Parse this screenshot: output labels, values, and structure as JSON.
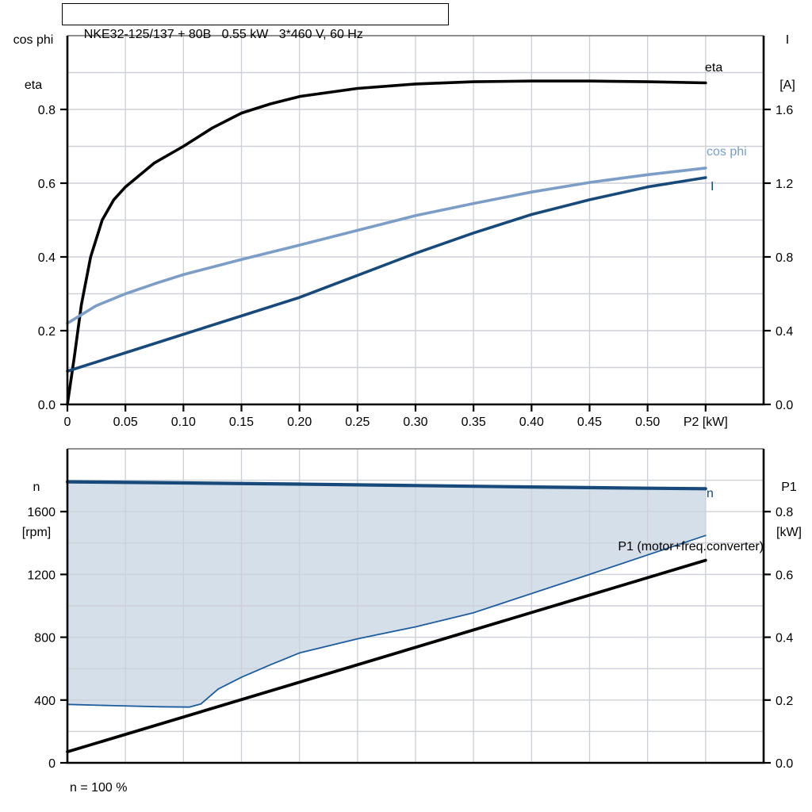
{
  "title_box": {
    "text": "NKE32-125/137 + 80B   0.55 kW   3*460 V, 60 Hz"
  },
  "colors": {
    "black": "#000000",
    "light_blue": "#7b9dc6",
    "dark_blue": "#17497b",
    "boundary_blue": "#1d5c9e",
    "area_fill": "#d4dfea",
    "grid": "#cdd1d7",
    "axis": "#000000",
    "top_border": "#6a6a6a"
  },
  "top_chart": {
    "left_axis_title_lines": [
      "cos phi",
      "eta"
    ],
    "right_axis_title_lines": [
      "I",
      "[A]"
    ],
    "x_axis_label": "P2 [kW]",
    "curve_labels": {
      "eta": "eta",
      "cos_phi": "cos phi",
      "current": "I"
    }
  },
  "bottom_chart": {
    "left_axis_title_lines": [
      "n",
      "[rpm]"
    ],
    "right_axis_title_lines": [
      "P1",
      "[kW]"
    ],
    "annotation": "P1 (motor+freq.converter)",
    "footnote": "n = 100 %",
    "curve_labels": {
      "n": "n"
    }
  },
  "chart_data": [
    {
      "id": "top",
      "type": "line",
      "title": "NKE32-125/137 + 80B   0.55 kW   3*460 V, 60 Hz",
      "xlabel": "P2 [kW]",
      "ylabel_left": "cos phi / eta",
      "ylabel_right": "I [A]",
      "xlim": [
        0,
        0.6
      ],
      "ylim_left": [
        0,
        1.0
      ],
      "ylim_right": [
        0,
        2.0
      ],
      "x_grid_step": 0.05,
      "y_grid_step": 0.1,
      "grid": true,
      "x_ticks": [
        {
          "v": 0,
          "label": "0"
        },
        {
          "v": 0.05,
          "label": "0.05"
        },
        {
          "v": 0.1,
          "label": "0.10"
        },
        {
          "v": 0.15,
          "label": "0.15"
        },
        {
          "v": 0.2,
          "label": "0.20"
        },
        {
          "v": 0.25,
          "label": "0.25"
        },
        {
          "v": 0.3,
          "label": "0.30"
        },
        {
          "v": 0.35,
          "label": "0.35"
        },
        {
          "v": 0.4,
          "label": "0.40"
        },
        {
          "v": 0.45,
          "label": "0.45"
        },
        {
          "v": 0.5,
          "label": "0.50"
        },
        {
          "v": 0.55,
          "label": "P2 [kW]"
        }
      ],
      "left_ticks": [
        {
          "v": 0.0,
          "label": "0.0"
        },
        {
          "v": 0.2,
          "label": "0.2"
        },
        {
          "v": 0.4,
          "label": "0.4"
        },
        {
          "v": 0.6,
          "label": "0.6"
        },
        {
          "v": 0.8,
          "label": "0.8"
        }
      ],
      "right_ticks": [
        {
          "v": 0.0,
          "label": "0.0"
        },
        {
          "v": 0.4,
          "label": "0.4"
        },
        {
          "v": 0.8,
          "label": "0.8"
        },
        {
          "v": 1.2,
          "label": "1.2"
        },
        {
          "v": 1.6,
          "label": "1.6"
        }
      ],
      "series": [
        {
          "name": "eta",
          "axis": "left",
          "color": "black",
          "width": 3.6,
          "points": [
            [
              0,
              0
            ],
            [
              0.006,
              0.13
            ],
            [
              0.012,
              0.27
            ],
            [
              0.02,
              0.4
            ],
            [
              0.03,
              0.5
            ],
            [
              0.04,
              0.555
            ],
            [
              0.05,
              0.59
            ],
            [
              0.075,
              0.655
            ],
            [
              0.1,
              0.7
            ],
            [
              0.125,
              0.75
            ],
            [
              0.15,
              0.79
            ],
            [
              0.175,
              0.815
            ],
            [
              0.2,
              0.835
            ],
            [
              0.25,
              0.857
            ],
            [
              0.3,
              0.869
            ],
            [
              0.35,
              0.875
            ],
            [
              0.4,
              0.877
            ],
            [
              0.45,
              0.877
            ],
            [
              0.5,
              0.875
            ],
            [
              0.55,
              0.872
            ]
          ]
        },
        {
          "name": "cos phi",
          "axis": "left",
          "color": "light_blue",
          "width": 3.6,
          "points": [
            [
              0,
              0.22
            ],
            [
              0.025,
              0.268
            ],
            [
              0.05,
              0.3
            ],
            [
              0.075,
              0.327
            ],
            [
              0.1,
              0.352
            ],
            [
              0.15,
              0.393
            ],
            [
              0.2,
              0.432
            ],
            [
              0.25,
              0.472
            ],
            [
              0.3,
              0.512
            ],
            [
              0.35,
              0.545
            ],
            [
              0.4,
              0.576
            ],
            [
              0.45,
              0.602
            ],
            [
              0.5,
              0.623
            ],
            [
              0.55,
              0.641
            ]
          ]
        },
        {
          "name": "I",
          "axis": "right",
          "color": "dark_blue",
          "width": 3.6,
          "points": [
            [
              0,
              0.18
            ],
            [
              0.05,
              0.28
            ],
            [
              0.1,
              0.38
            ],
            [
              0.15,
              0.48
            ],
            [
              0.2,
              0.58
            ],
            [
              0.25,
              0.7
            ],
            [
              0.3,
              0.82
            ],
            [
              0.35,
              0.93
            ],
            [
              0.4,
              1.03
            ],
            [
              0.45,
              1.11
            ],
            [
              0.5,
              1.18
            ],
            [
              0.55,
              1.23
            ]
          ]
        }
      ]
    },
    {
      "id": "bottom",
      "type": "area+line",
      "xlabel": "",
      "ylabel_left": "n [rpm]",
      "ylabel_right": "P1 [kW]",
      "xlim": [
        0,
        0.6
      ],
      "ylim_left": [
        0,
        2000
      ],
      "ylim_right": [
        0,
        1.0
      ],
      "x_grid_step": 0.05,
      "y_grid_step": 200,
      "grid": true,
      "x_ticks": [],
      "left_ticks": [
        {
          "v": 0,
          "label": "0"
        },
        {
          "v": 400,
          "label": "400"
        },
        {
          "v": 800,
          "label": "800"
        },
        {
          "v": 1200,
          "label": "1200"
        },
        {
          "v": 1600,
          "label": "1600"
        }
      ],
      "right_ticks": [
        {
          "v": 0.0,
          "label": "0.0"
        },
        {
          "v": 0.2,
          "label": "0.2"
        },
        {
          "v": 0.4,
          "label": "0.4"
        },
        {
          "v": 0.6,
          "label": "0.6"
        },
        {
          "v": 0.8,
          "label": "0.8"
        }
      ],
      "area": {
        "upper": "n",
        "lower": "n_min",
        "fill": "area_fill"
      },
      "series": [
        {
          "name": "n_min",
          "axis": "left",
          "color": "boundary_blue",
          "width": 1.8,
          "points": [
            [
              0,
              372
            ],
            [
              0.04,
              364
            ],
            [
              0.08,
              357
            ],
            [
              0.105,
              355
            ],
            [
              0.115,
              375
            ],
            [
              0.13,
              470
            ],
            [
              0.15,
              545
            ],
            [
              0.175,
              625
            ],
            [
              0.2,
              700
            ],
            [
              0.25,
              790
            ],
            [
              0.3,
              866
            ],
            [
              0.35,
              956
            ],
            [
              0.368,
              1000
            ],
            [
              0.45,
              1200
            ],
            [
              0.55,
              1448
            ]
          ]
        },
        {
          "name": "n",
          "axis": "left",
          "color": "dark_blue",
          "width": 4.2,
          "points": [
            [
              0,
              1790
            ],
            [
              0.1,
              1783
            ],
            [
              0.2,
              1775
            ],
            [
              0.3,
              1766
            ],
            [
              0.4,
              1757
            ],
            [
              0.5,
              1749
            ],
            [
              0.55,
              1746
            ]
          ]
        },
        {
          "name": "P1",
          "axis": "right",
          "color": "black",
          "width": 3.8,
          "points": [
            [
              0,
              0.035
            ],
            [
              0.55,
              0.645
            ]
          ]
        }
      ]
    }
  ]
}
